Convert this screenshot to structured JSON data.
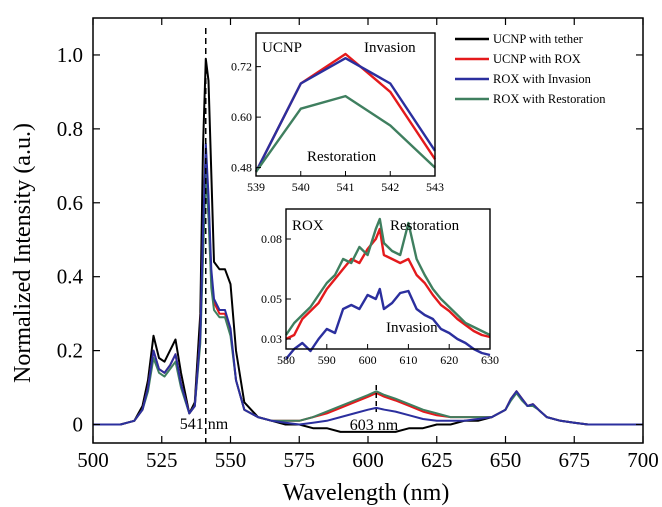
{
  "chart_data": {
    "type": "line",
    "xlabel": "Wavelength (nm)",
    "ylabel": "Normalized Intensity (a.u.)",
    "xlim": [
      500,
      700
    ],
    "ylim": [
      -0.05,
      1.1
    ],
    "xticks": [
      "500",
      "525",
      "550",
      "575",
      "600",
      "625",
      "650",
      "675",
      "700"
    ],
    "yticks": [
      "0",
      "0.2",
      "0.4",
      "0.6",
      "0.8",
      "1.0"
    ],
    "grid": false,
    "legend_position": "top-right",
    "series": [
      {
        "name": "UCNP with tether",
        "color": "#000000",
        "x": [
          500,
          510,
          515,
          518,
          520,
          522,
          524,
          526,
          528,
          530,
          532,
          535,
          537,
          539,
          540,
          541,
          542,
          543,
          544,
          546,
          548,
          550,
          552,
          555,
          560,
          565,
          570,
          575,
          580,
          585,
          590,
          595,
          600,
          603,
          606,
          610,
          615,
          620,
          625,
          630,
          635,
          640,
          645,
          650,
          652,
          654,
          656,
          658,
          660,
          662,
          665,
          670,
          675,
          680,
          690,
          700
        ],
        "y": [
          0.0,
          0.0,
          0.01,
          0.05,
          0.12,
          0.24,
          0.18,
          0.17,
          0.2,
          0.23,
          0.14,
          0.03,
          0.06,
          0.3,
          0.75,
          0.99,
          0.93,
          0.68,
          0.44,
          0.42,
          0.42,
          0.38,
          0.2,
          0.06,
          0.02,
          0.01,
          0.0,
          0.0,
          -0.01,
          -0.01,
          -0.02,
          -0.02,
          -0.02,
          -0.02,
          -0.02,
          -0.02,
          -0.01,
          -0.01,
          0.0,
          0.0,
          0.01,
          0.01,
          0.02,
          0.04,
          0.07,
          0.09,
          0.07,
          0.05,
          0.055,
          0.04,
          0.02,
          0.01,
          0.005,
          0.0,
          0.0,
          0.0
        ]
      },
      {
        "name": "UCNP with ROX",
        "color": "#e41a1c",
        "x": [
          500,
          510,
          515,
          518,
          520,
          522,
          524,
          526,
          528,
          530,
          532,
          535,
          537,
          539,
          540,
          541,
          542,
          543,
          544,
          546,
          548,
          550,
          552,
          555,
          560,
          565,
          570,
          575,
          580,
          585,
          590,
          595,
          600,
          603,
          606,
          610,
          615,
          620,
          625,
          630,
          635,
          640,
          645,
          650,
          652,
          654,
          656,
          658,
          660,
          662,
          665,
          670,
          675,
          680,
          690,
          700
        ],
        "y": [
          0.0,
          0.0,
          0.01,
          0.04,
          0.1,
          0.2,
          0.15,
          0.14,
          0.16,
          0.19,
          0.11,
          0.03,
          0.05,
          0.24,
          0.5,
          0.73,
          0.6,
          0.4,
          0.33,
          0.3,
          0.3,
          0.25,
          0.12,
          0.04,
          0.02,
          0.01,
          0.01,
          0.01,
          0.02,
          0.03,
          0.045,
          0.06,
          0.075,
          0.085,
          0.075,
          0.065,
          0.05,
          0.035,
          0.025,
          0.02,
          0.02,
          0.02,
          0.02,
          0.04,
          0.07,
          0.09,
          0.07,
          0.05,
          0.055,
          0.04,
          0.02,
          0.01,
          0.005,
          0.0,
          0.0,
          0.0
        ]
      },
      {
        "name": "ROX with Invasion",
        "color": "#2b2f9e",
        "x": [
          500,
          510,
          515,
          518,
          520,
          522,
          524,
          526,
          528,
          530,
          532,
          535,
          537,
          539,
          540,
          541,
          542,
          543,
          544,
          546,
          548,
          550,
          552,
          555,
          560,
          565,
          570,
          575,
          580,
          585,
          590,
          595,
          600,
          603,
          606,
          610,
          615,
          620,
          625,
          630,
          635,
          640,
          645,
          650,
          652,
          654,
          656,
          658,
          660,
          662,
          665,
          670,
          675,
          680,
          690,
          700
        ],
        "y": [
          0.0,
          0.0,
          0.01,
          0.04,
          0.1,
          0.2,
          0.15,
          0.14,
          0.16,
          0.19,
          0.11,
          0.03,
          0.05,
          0.24,
          0.52,
          0.76,
          0.62,
          0.42,
          0.34,
          0.31,
          0.31,
          0.26,
          0.12,
          0.04,
          0.02,
          0.01,
          0.005,
          0.0,
          0.005,
          0.01,
          0.02,
          0.03,
          0.04,
          0.045,
          0.04,
          0.035,
          0.025,
          0.015,
          0.01,
          0.01,
          0.01,
          0.015,
          0.02,
          0.04,
          0.07,
          0.09,
          0.07,
          0.05,
          0.055,
          0.04,
          0.02,
          0.01,
          0.005,
          0.0,
          0.0,
          0.0
        ]
      },
      {
        "name": "ROX with Restoration",
        "color": "#3f7f5f",
        "x": [
          500,
          510,
          515,
          518,
          520,
          522,
          524,
          526,
          528,
          530,
          532,
          535,
          537,
          539,
          540,
          541,
          542,
          543,
          544,
          546,
          548,
          550,
          552,
          555,
          560,
          565,
          570,
          575,
          580,
          585,
          590,
          595,
          600,
          603,
          606,
          610,
          615,
          620,
          625,
          630,
          635,
          640,
          645,
          650,
          652,
          654,
          656,
          658,
          660,
          662,
          665,
          670,
          675,
          680,
          690,
          700
        ],
        "y": [
          0.0,
          0.0,
          0.01,
          0.04,
          0.09,
          0.18,
          0.14,
          0.13,
          0.15,
          0.17,
          0.1,
          0.03,
          0.05,
          0.22,
          0.45,
          0.68,
          0.56,
          0.37,
          0.31,
          0.29,
          0.29,
          0.24,
          0.12,
          0.04,
          0.02,
          0.01,
          0.01,
          0.01,
          0.02,
          0.035,
          0.05,
          0.065,
          0.08,
          0.09,
          0.08,
          0.07,
          0.055,
          0.04,
          0.03,
          0.02,
          0.02,
          0.02,
          0.02,
          0.04,
          0.065,
          0.085,
          0.065,
          0.05,
          0.05,
          0.04,
          0.02,
          0.01,
          0.005,
          0.0,
          0.0,
          0.0
        ]
      }
    ],
    "annotations": [
      "541 nm",
      "603 nm"
    ],
    "insets": [
      {
        "xlim": [
          539,
          543
        ],
        "ylim": [
          0.46,
          0.8
        ],
        "xticks": [
          "539",
          "540",
          "541",
          "542",
          "543"
        ],
        "yticks": [
          "0.48",
          "0.60",
          "0.72"
        ],
        "labels": [
          "UCNP",
          "Invasion",
          "Restoration"
        ],
        "series": [
          {
            "name": "UCNP with ROX",
            "color": "#e41a1c",
            "x": [
              539,
              540,
              541,
              542,
              543
            ],
            "y": [
              0.47,
              0.68,
              0.75,
              0.66,
              0.5
            ]
          },
          {
            "name": "ROX with Invasion",
            "color": "#2b2f9e",
            "x": [
              539,
              540,
              541,
              542,
              543
            ],
            "y": [
              0.47,
              0.68,
              0.74,
              0.68,
              0.52
            ]
          },
          {
            "name": "ROX with Restoration",
            "color": "#3f7f5f",
            "x": [
              539,
              540,
              541,
              542,
              543
            ],
            "y": [
              0.47,
              0.62,
              0.65,
              0.58,
              0.48
            ]
          }
        ]
      },
      {
        "xlim": [
          580,
          630
        ],
        "ylim": [
          0.025,
          0.095
        ],
        "xticks": [
          "580",
          "590",
          "600",
          "610",
          "620",
          "630"
        ],
        "yticks": [
          "0.03",
          "0.05",
          "0.08"
        ],
        "labels": [
          "ROX",
          "Restoration",
          "Invasion"
        ],
        "series": [
          {
            "name": "UCNP with ROX",
            "color": "#e41a1c",
            "x": [
              580,
              582,
              584,
              586,
              588,
              590,
              592,
              594,
              596,
              598,
              600,
              602,
              603,
              604,
              606,
              608,
              610,
              612,
              614,
              616,
              618,
              620,
              622,
              624,
              626,
              628,
              630
            ],
            "y": [
              0.03,
              0.032,
              0.04,
              0.044,
              0.048,
              0.055,
              0.06,
              0.065,
              0.07,
              0.068,
              0.075,
              0.08,
              0.085,
              0.072,
              0.07,
              0.068,
              0.07,
              0.062,
              0.058,
              0.052,
              0.047,
              0.044,
              0.04,
              0.037,
              0.034,
              0.032,
              0.031
            ]
          },
          {
            "name": "ROX with Invasion",
            "color": "#2b2f9e",
            "x": [
              580,
              582,
              584,
              586,
              588,
              590,
              592,
              594,
              596,
              598,
              600,
              602,
              603,
              604,
              606,
              608,
              610,
              612,
              614,
              616,
              618,
              620,
              622,
              624,
              626,
              628,
              630
            ],
            "y": [
              0.02,
              0.025,
              0.028,
              0.024,
              0.03,
              0.035,
              0.033,
              0.045,
              0.047,
              0.045,
              0.052,
              0.05,
              0.055,
              0.045,
              0.048,
              0.053,
              0.054,
              0.045,
              0.042,
              0.04,
              0.035,
              0.033,
              0.03,
              0.028,
              0.025,
              0.023,
              0.022
            ]
          },
          {
            "name": "ROX with Restoration",
            "color": "#3f7f5f",
            "x": [
              580,
              582,
              584,
              586,
              588,
              590,
              592,
              594,
              596,
              598,
              600,
              602,
              603,
              604,
              606,
              608,
              610,
              612,
              614,
              616,
              618,
              620,
              622,
              624,
              626,
              628,
              630
            ],
            "y": [
              0.032,
              0.038,
              0.042,
              0.046,
              0.052,
              0.058,
              0.062,
              0.07,
              0.068,
              0.076,
              0.072,
              0.085,
              0.09,
              0.078,
              0.074,
              0.072,
              0.088,
              0.07,
              0.062,
              0.055,
              0.05,
              0.046,
              0.042,
              0.038,
              0.036,
              0.034,
              0.032
            ]
          }
        ]
      }
    ]
  }
}
